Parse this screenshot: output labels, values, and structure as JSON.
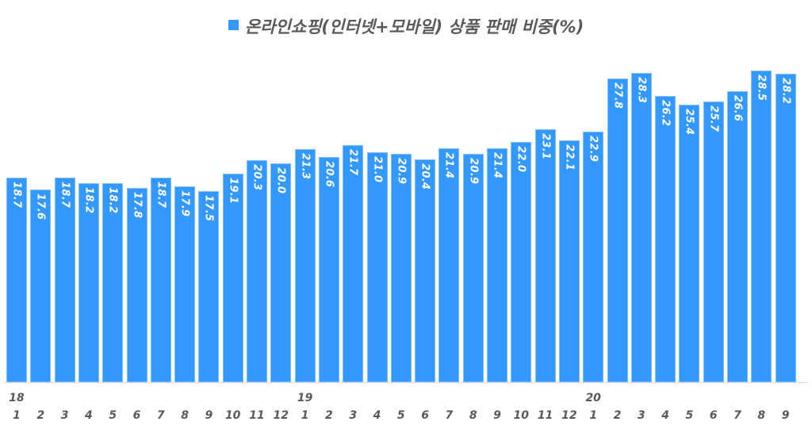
{
  "chart_data": {
    "type": "bar",
    "title": "온라인쇼핑(인터넷+모바일) 상품 판매 비중(%)",
    "legend": [
      {
        "name": "온라인쇼핑(인터넷+모바일) 상품 판매 비중(%)",
        "color": "#3399ff"
      }
    ],
    "legend_position": "top",
    "xlabel": "",
    "ylabel": "",
    "grid": false,
    "data_labels": true,
    "ylim": [
      0,
      30
    ],
    "categories": [
      "18-1",
      "18-2",
      "18-3",
      "18-4",
      "18-5",
      "18-6",
      "18-7",
      "18-8",
      "18-9",
      "18-10",
      "18-11",
      "18-12",
      "19-1",
      "19-2",
      "19-3",
      "19-4",
      "19-5",
      "19-6",
      "19-7",
      "19-8",
      "19-9",
      "19-10",
      "19-11",
      "19-12",
      "20-1",
      "20-2",
      "20-3",
      "20-4",
      "20-5",
      "20-6",
      "20-7",
      "20-8",
      "20-9"
    ],
    "month_labels": [
      "1",
      "2",
      "3",
      "4",
      "5",
      "6",
      "7",
      "8",
      "9",
      "10",
      "11",
      "12",
      "1",
      "2",
      "3",
      "4",
      "5",
      "6",
      "7",
      "8",
      "9",
      "10",
      "11",
      "12",
      "1",
      "2",
      "3",
      "4",
      "5",
      "6",
      "7",
      "8",
      "9"
    ],
    "year_labels": [
      {
        "index": 0,
        "label": "18"
      },
      {
        "index": 12,
        "label": "19"
      },
      {
        "index": 24,
        "label": "20"
      }
    ],
    "series": [
      {
        "name": "온라인쇼핑(인터넷+모바일) 상품 판매 비중(%)",
        "values": [
          18.7,
          17.6,
          18.7,
          18.2,
          18.2,
          17.8,
          18.7,
          17.9,
          17.5,
          19.1,
          20.3,
          20.0,
          21.3,
          20.6,
          21.7,
          21.0,
          20.9,
          20.4,
          21.4,
          20.9,
          21.4,
          22.0,
          23.1,
          22.1,
          22.9,
          27.8,
          28.3,
          26.2,
          25.4,
          25.7,
          26.6,
          28.5,
          28.2
        ],
        "labels": [
          "18.7",
          "17.6",
          "18.7",
          "18.2",
          "18.2",
          "17.8",
          "18.7",
          "17.9",
          "17.5",
          "19.1",
          "20.3",
          "20.0",
          "21.3",
          "20.6",
          "21.7",
          "21.0",
          "20.9",
          "20.4",
          "21.4",
          "20.9",
          "21.4",
          "22.0",
          "23.1",
          "22.1",
          "22.9",
          "27.8",
          "28.3",
          "26.2",
          "25.4",
          "25.7",
          "26.6",
          "28.5",
          "28.2"
        ]
      }
    ]
  },
  "legend": {
    "label": "온라인쇼핑(인터넷+모바일) 상품 판매 비중(%)",
    "color": "#3399ff"
  }
}
